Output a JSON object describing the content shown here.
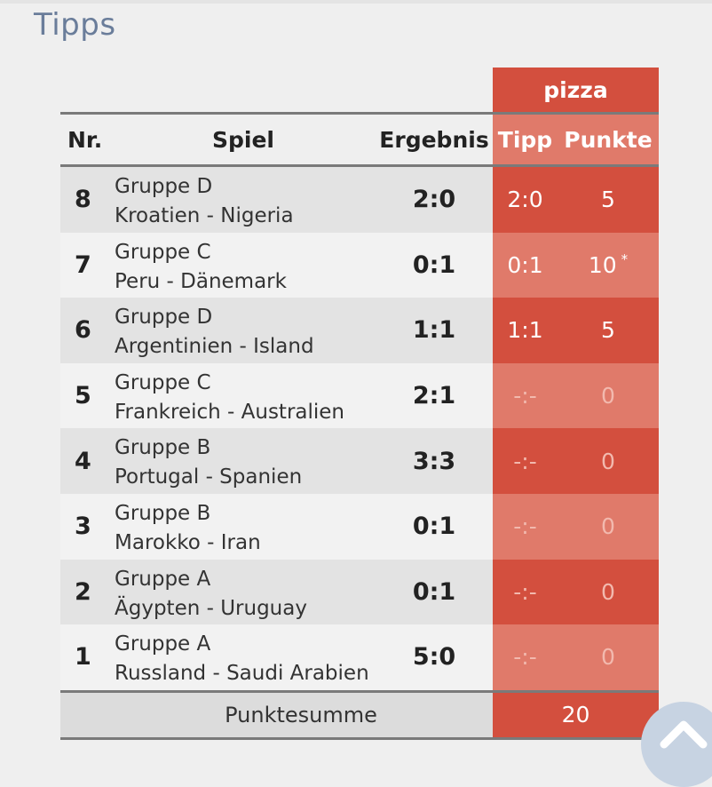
{
  "page": {
    "title": "Tipps"
  },
  "user": {
    "name": "pizza"
  },
  "columns": {
    "nr": "Nr.",
    "spiel": "Spiel",
    "ergebnis": "Ergebnis",
    "tipp": "Tipp",
    "punkte": "Punkte"
  },
  "rows": [
    {
      "nr": "8",
      "group": "Gruppe D",
      "match": "Kroatien - Nigeria",
      "result": "2:0",
      "tipp": "2:0",
      "punkte": "5",
      "star": ""
    },
    {
      "nr": "7",
      "group": "Gruppe C",
      "match": "Peru - Dänemark",
      "result": "0:1",
      "tipp": "0:1",
      "punkte": "10",
      "star": "*"
    },
    {
      "nr": "6",
      "group": "Gruppe D",
      "match": "Argentinien - Island",
      "result": "1:1",
      "tipp": "1:1",
      "punkte": "5",
      "star": ""
    },
    {
      "nr": "5",
      "group": "Gruppe C",
      "match": "Frankreich - Australien",
      "result": "2:1",
      "tipp": "-:-",
      "punkte": "0",
      "star": ""
    },
    {
      "nr": "4",
      "group": "Gruppe B",
      "match": "Portugal - Spanien",
      "result": "3:3",
      "tipp": "-:-",
      "punkte": "0",
      "star": ""
    },
    {
      "nr": "3",
      "group": "Gruppe B",
      "match": "Marokko - Iran",
      "result": "0:1",
      "tipp": "-:-",
      "punkte": "0",
      "star": ""
    },
    {
      "nr": "2",
      "group": "Gruppe A",
      "match": "Ägypten - Uruguay",
      "result": "0:1",
      "tipp": "-:-",
      "punkte": "0",
      "star": ""
    },
    {
      "nr": "1",
      "group": "Gruppe A",
      "match": "Russland - Saudi Arabien",
      "result": "5:0",
      "tipp": "-:-",
      "punkte": "0",
      "star": ""
    }
  ],
  "summary": {
    "label": "Punktesumme",
    "value": "20"
  },
  "icons": {
    "scroll_top": "chevron-up-icon"
  },
  "colors": {
    "accent_dark": "#d34f3e",
    "accent_light": "#e07a6a",
    "title": "#6a7d9a"
  }
}
